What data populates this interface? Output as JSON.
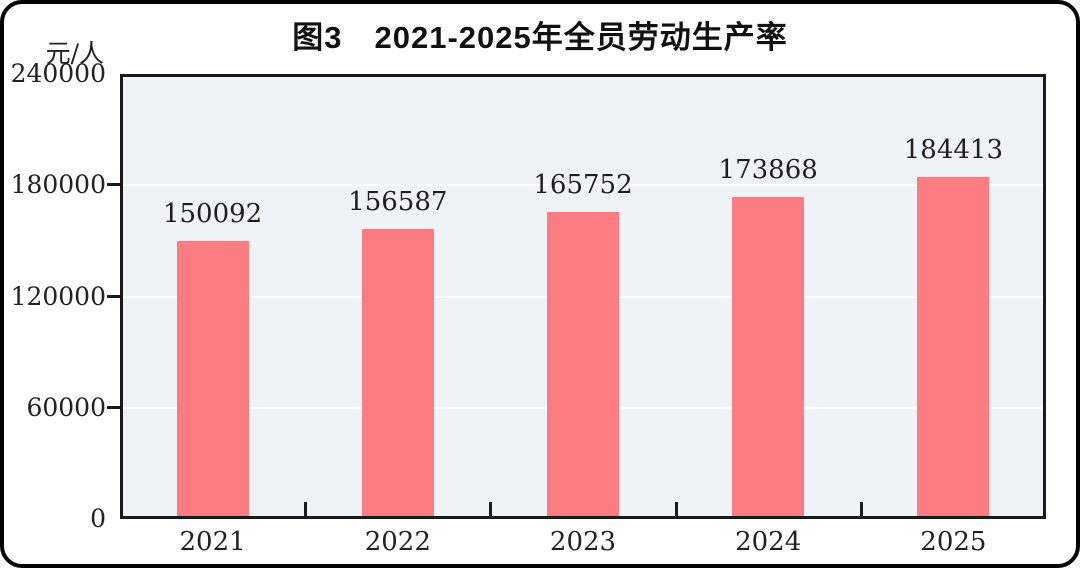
{
  "figure": {
    "title": "图3　2021-2025年全员劳动生产率",
    "unit_label": "元/人"
  },
  "colors": {
    "bar": "#FC7D81",
    "plot_bg": "#EDF3F6",
    "gridline": "#FFFFFF",
    "frame": "#1A1A1A",
    "text": "#1F1F1F"
  },
  "chart_data": {
    "type": "bar",
    "title": "图3　2021-2025年全员劳动生产率",
    "categories": [
      "2021",
      "2022",
      "2023",
      "2024",
      "2025"
    ],
    "values": [
      150092,
      156587,
      165752,
      173868,
      184413
    ],
    "xlabel": "",
    "ylabel": "元/人",
    "ylim": [
      0,
      240000
    ],
    "y_ticks": [
      0,
      60000,
      120000,
      180000,
      240000
    ],
    "grid": true,
    "legend": "none",
    "data_labels": true
  }
}
